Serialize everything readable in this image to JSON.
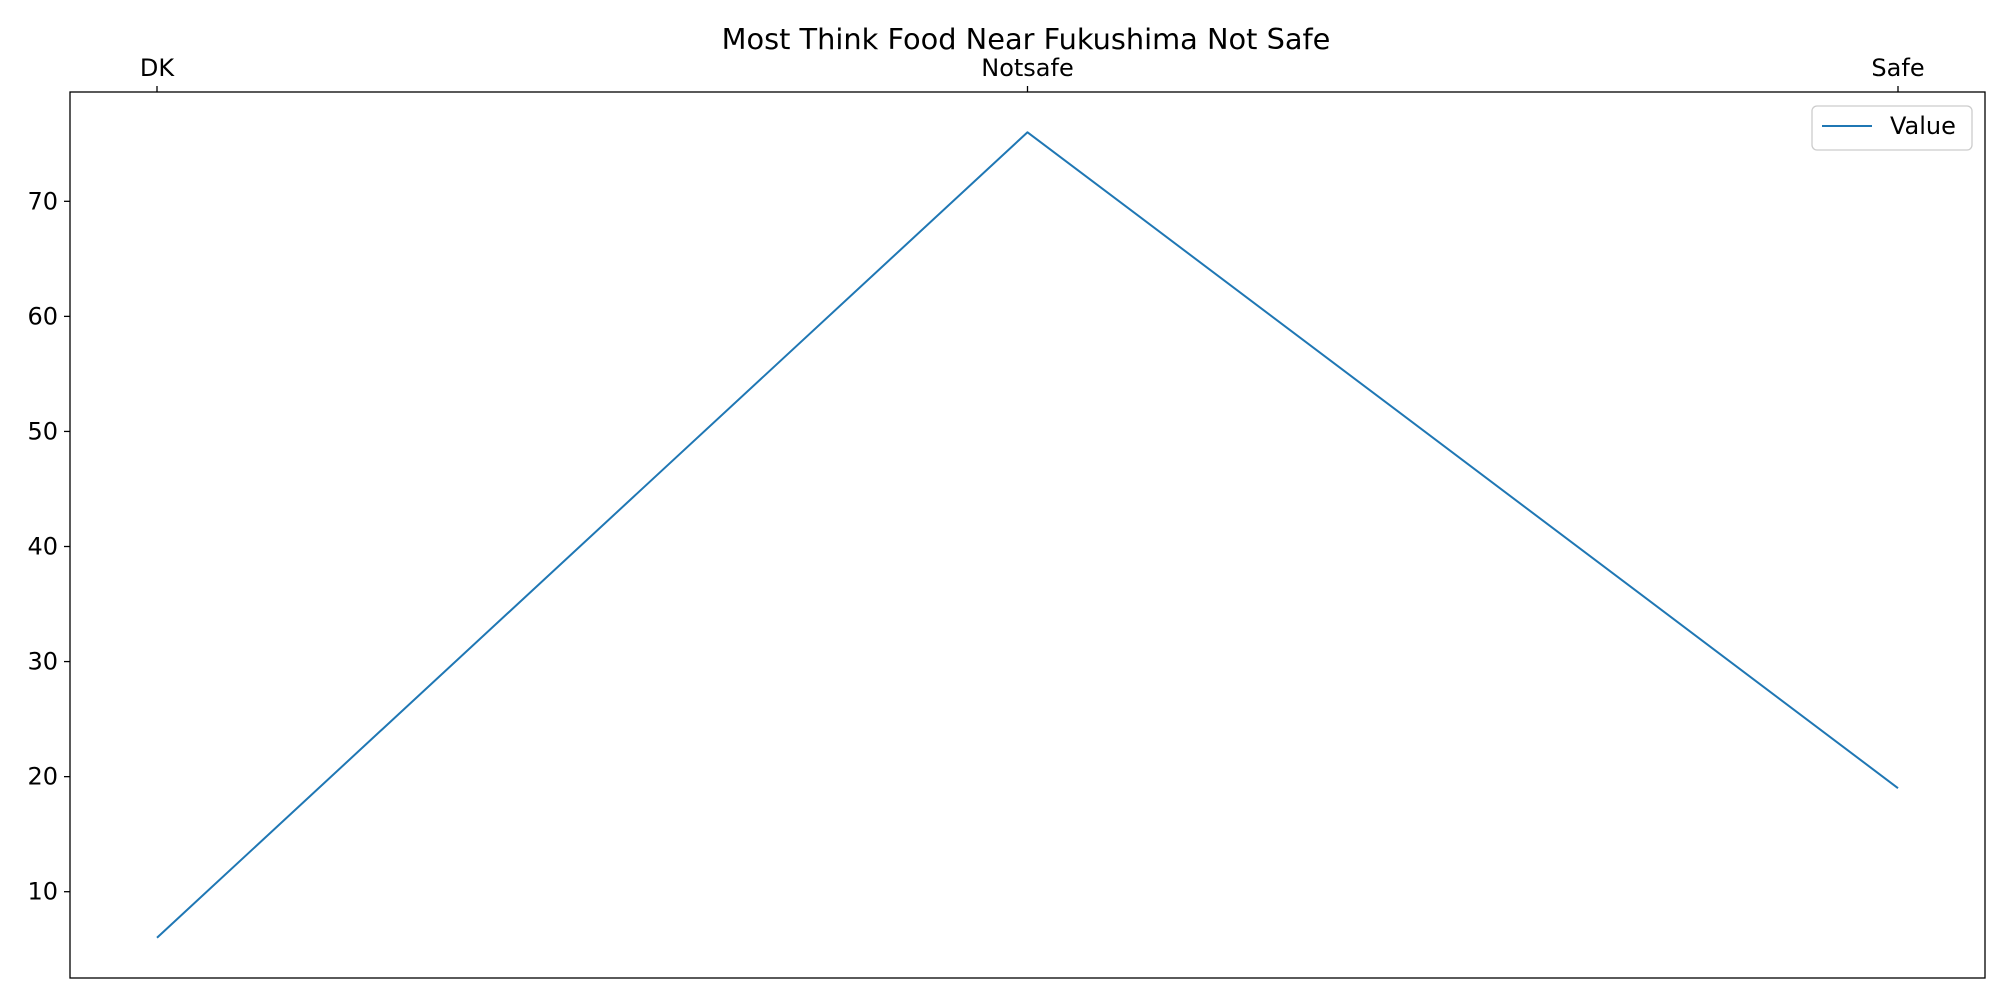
{
  "chart_data": {
    "type": "line",
    "title": "Most Think Food Near Fukushima Not Safe",
    "xlabel": "",
    "ylabel": "",
    "categories": [
      "DK",
      "Notsafe",
      "Safe"
    ],
    "x_axis_position": "top",
    "series": [
      {
        "name": "Value",
        "values": [
          6,
          76,
          19
        ],
        "color": "#1f77b4"
      }
    ],
    "ylim": [
      2.5,
      79.5
    ],
    "yticks": [
      10,
      20,
      30,
      40,
      50,
      60,
      70
    ],
    "grid": false,
    "legend": "top-right"
  }
}
